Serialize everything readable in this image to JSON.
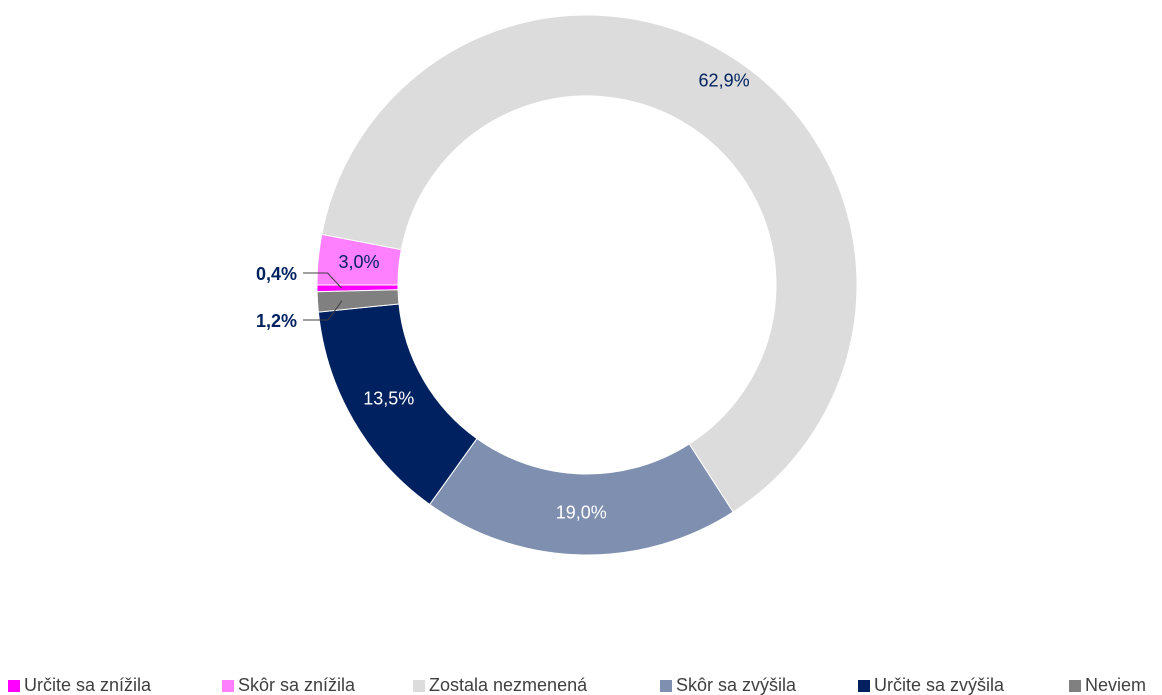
{
  "chart_data": {
    "type": "donut",
    "categories": [
      "Určite sa znížila",
      "Skôr sa znížila",
      "Zostala nezmenená",
      "Skôr sa zvýšila",
      "Určite sa zvýšila",
      "Neviem"
    ],
    "values": [
      0.4,
      3.0,
      62.9,
      19.0,
      13.5,
      1.2
    ],
    "value_labels": [
      "0,4%",
      "3,0%",
      "62,9%",
      "19,0%",
      "13,5%",
      "1,2%"
    ],
    "colors": [
      "#ff00ff",
      "#ff80ff",
      "#dcdcdc",
      "#7f8fb0",
      "#00215f",
      "#808080"
    ],
    "legend": "bottom"
  }
}
